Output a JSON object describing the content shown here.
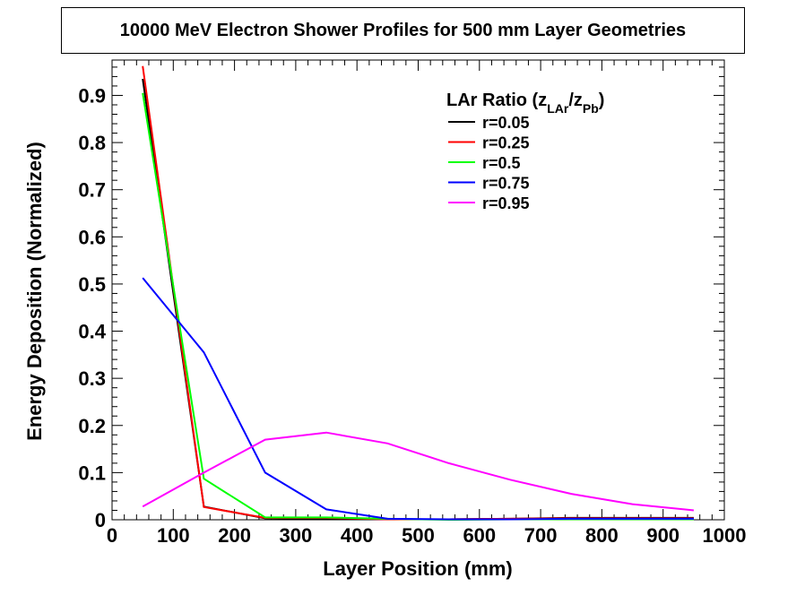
{
  "chart_data": {
    "type": "line",
    "title": "10000 MeV Electron Shower Profiles for 500 mm Layer Geometries",
    "xlabel": "Layer Position (mm)",
    "ylabel": "Energy Deposition (Normalized)",
    "xlim": [
      0,
      1000
    ],
    "ylim": [
      0,
      0.975
    ],
    "x_ticks": [
      "0",
      "100",
      "200",
      "300",
      "400",
      "500",
      "600",
      "700",
      "800",
      "900",
      "1000"
    ],
    "y_ticks": [
      "0",
      "0.1",
      "0.2",
      "0.3",
      "0.4",
      "0.5",
      "0.6",
      "0.7",
      "0.8",
      "0.9"
    ],
    "grid": false,
    "legend": {
      "placement": "top-right",
      "title_main": "LAr Ratio (z",
      "title_sub1": "LAr",
      "title_mid": "/z",
      "title_sub2": "Pb",
      "title_end": ")"
    },
    "x": [
      50,
      150,
      250,
      350,
      450,
      550,
      650,
      750,
      850,
      950
    ],
    "series": [
      {
        "name": "r=0.05",
        "color": "#000000",
        "values": [
          0.935,
          0.028,
          0.003,
          0.002,
          0.001,
          0.001,
          0.002,
          0.004,
          0.004,
          0.004
        ]
      },
      {
        "name": "r=0.25",
        "color": "#ff0000",
        "values": [
          0.962,
          0.027,
          0.004,
          0.004,
          0.001,
          0.001,
          0.002,
          0.003,
          0.003,
          0.003
        ]
      },
      {
        "name": "r=0.5",
        "color": "#00ff00",
        "values": [
          0.905,
          0.087,
          0.005,
          0.005,
          0.002,
          0.0,
          0.001,
          0.001,
          0.001,
          0.001
        ]
      },
      {
        "name": "r=0.75",
        "color": "#0000ff",
        "values": [
          0.513,
          0.355,
          0.1,
          0.022,
          0.002,
          0.001,
          0.001,
          0.002,
          0.002,
          0.002
        ]
      },
      {
        "name": "r=0.95",
        "color": "#ff00ff",
        "values": [
          0.028,
          0.1,
          0.17,
          0.185,
          0.162,
          0.12,
          0.085,
          0.055,
          0.033,
          0.02
        ]
      }
    ]
  }
}
